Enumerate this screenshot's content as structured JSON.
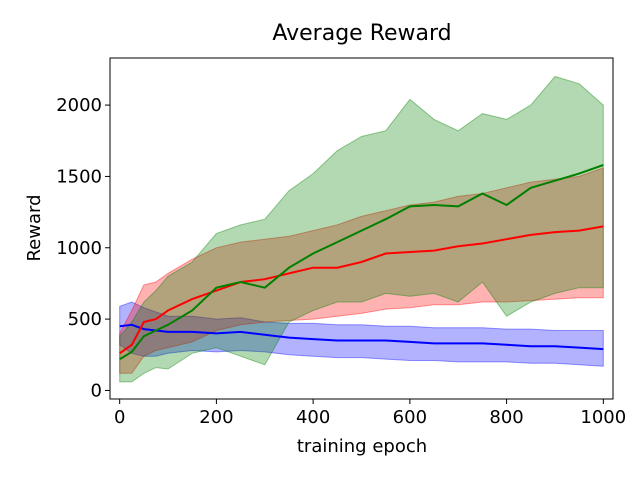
{
  "chart_data": {
    "type": "line",
    "title": "Average Reward",
    "xlabel": "training epoch",
    "ylabel": "Reward",
    "xlim": [
      -20,
      1020
    ],
    "ylim": [
      -60,
      2330
    ],
    "xticks": [
      0,
      200,
      400,
      600,
      800,
      1000
    ],
    "yticks": [
      0,
      500,
      1000,
      1500,
      2000
    ],
    "grid": false,
    "legend": "none",
    "series": [
      {
        "color": "#0000ff",
        "x": [
          0,
          25,
          50,
          75,
          100,
          150,
          200,
          250,
          300,
          350,
          400,
          450,
          500,
          550,
          600,
          650,
          700,
          750,
          800,
          850,
          900,
          950,
          1000
        ],
        "mean": [
          450,
          460,
          430,
          420,
          410,
          410,
          400,
          410,
          390,
          370,
          360,
          350,
          350,
          350,
          340,
          330,
          330,
          330,
          320,
          310,
          310,
          300,
          290
        ],
        "lower": [
          320,
          260,
          240,
          240,
          260,
          280,
          270,
          280,
          270,
          250,
          240,
          230,
          230,
          220,
          210,
          210,
          200,
          200,
          200,
          190,
          190,
          180,
          170
        ],
        "upper": [
          590,
          620,
          580,
          550,
          520,
          520,
          500,
          510,
          480,
          470,
          470,
          460,
          460,
          450,
          450,
          440,
          440,
          440,
          430,
          430,
          420,
          420,
          420
        ]
      },
      {
        "color": "#ff0000",
        "x": [
          0,
          25,
          50,
          75,
          100,
          150,
          200,
          250,
          300,
          350,
          400,
          450,
          500,
          550,
          600,
          650,
          700,
          750,
          800,
          850,
          900,
          950,
          1000
        ],
        "mean": [
          260,
          320,
          480,
          500,
          560,
          640,
          700,
          760,
          780,
          820,
          860,
          860,
          900,
          960,
          970,
          980,
          1010,
          1030,
          1060,
          1090,
          1110,
          1120,
          1150
        ],
        "lower": [
          120,
          120,
          240,
          280,
          300,
          340,
          420,
          460,
          480,
          490,
          500,
          520,
          540,
          570,
          580,
          600,
          600,
          620,
          620,
          630,
          640,
          650,
          650
        ],
        "upper": [
          400,
          560,
          740,
          760,
          820,
          920,
          1000,
          1040,
          1060,
          1080,
          1120,
          1160,
          1220,
          1260,
          1300,
          1320,
          1360,
          1380,
          1420,
          1460,
          1480,
          1500,
          1560
        ]
      },
      {
        "color": "#008000",
        "x": [
          0,
          25,
          50,
          75,
          100,
          150,
          200,
          250,
          300,
          350,
          400,
          450,
          500,
          550,
          600,
          650,
          700,
          750,
          800,
          850,
          900,
          950,
          1000
        ],
        "mean": [
          220,
          270,
          380,
          420,
          460,
          560,
          720,
          760,
          720,
          860,
          960,
          1040,
          1120,
          1200,
          1290,
          1300,
          1290,
          1380,
          1300,
          1420,
          1470,
          1520,
          1580
        ],
        "lower": [
          60,
          60,
          120,
          160,
          150,
          260,
          300,
          240,
          180,
          480,
          560,
          620,
          620,
          680,
          660,
          680,
          620,
          760,
          520,
          620,
          680,
          720,
          720
        ],
        "upper": [
          380,
          480,
          620,
          700,
          800,
          900,
          1100,
          1160,
          1200,
          1400,
          1520,
          1680,
          1780,
          1820,
          2040,
          1900,
          1820,
          1940,
          1900,
          2000,
          2200,
          2150,
          2000
        ]
      }
    ]
  }
}
